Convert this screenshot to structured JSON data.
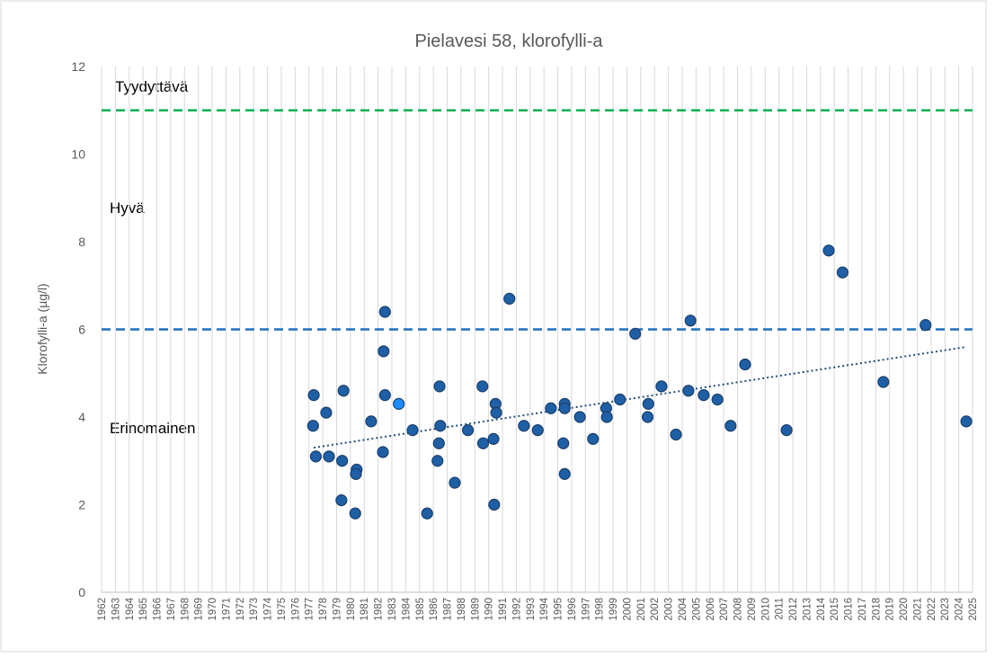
{
  "chart_data": {
    "type": "scatter",
    "title": "Pielavesi 58, klorofylli-a",
    "y_label": "Klorofylli-a (µg/l)",
    "annotations": [
      "Tyydyttävä",
      "Hyvä",
      "Erinomainen"
    ],
    "xlim": [
      1962,
      2025
    ],
    "xticks": [
      1962,
      1963,
      1964,
      1965,
      1966,
      1967,
      1968,
      1969,
      1970,
      1971,
      1972,
      1973,
      1974,
      1975,
      1976,
      1977,
      1978,
      1979,
      1980,
      1981,
      1982,
      1983,
      1984,
      1985,
      1986,
      1987,
      1988,
      1989,
      1990,
      1991,
      1992,
      1993,
      1994,
      1995,
      1996,
      1997,
      1998,
      1999,
      2000,
      2001,
      2002,
      2003,
      2004,
      2005,
      2006,
      2007,
      2008,
      2009,
      2010,
      2011,
      2012,
      2013,
      2014,
      2015,
      2016,
      2017,
      2018,
      2019,
      2020,
      2021,
      2022,
      2023,
      2024,
      2025
    ],
    "ylim": [
      0,
      12
    ],
    "yticks": [
      0,
      2,
      4,
      6,
      8,
      10,
      12
    ],
    "grid": "x",
    "thresholds": [
      {
        "value": 11,
        "color": "#00b050"
      },
      {
        "value": 6,
        "color": "#1f6fbf"
      }
    ],
    "points": {
      "color": "#1f5fa6",
      "x": [
        1977.35,
        1977.3,
        1977.5,
        1978.25,
        1978.45,
        1979.5,
        1979.4,
        1979.35,
        1980.45,
        1980.4,
        1980.35,
        1981.5,
        1982.5,
        1982.4,
        1982.5,
        1982.35,
        1984.5,
        1985.55,
        1986.45,
        1986.5,
        1986.4,
        1986.3,
        1987.55,
        1988.5,
        1989.55,
        1989.6,
        1990.5,
        1990.55,
        1990.35,
        1990.4,
        1991.5,
        1992.55,
        1993.55,
        1994.5,
        1995.5,
        1995.5,
        1995.4,
        1995.5,
        1996.6,
        1997.55,
        1998.5,
        1998.55,
        1999.5,
        2000.6,
        2001.55,
        2001.5,
        2002.5,
        2003.55,
        2004.6,
        2004.45,
        2005.55,
        2006.55,
        2007.5,
        2008.55,
        2011.55,
        2014.6,
        2015.6,
        2018.55,
        2021.6,
        2024.55
      ],
      "values": [
        4.5,
        3.8,
        3.1,
        4.1,
        3.1,
        4.6,
        3.0,
        2.1,
        2.8,
        2.7,
        1.8,
        3.9,
        6.4,
        5.5,
        4.5,
        3.2,
        3.7,
        1.8,
        4.7,
        3.8,
        3.4,
        3.0,
        2.5,
        3.7,
        4.7,
        3.4,
        4.3,
        4.1,
        3.5,
        2.0,
        6.7,
        3.8,
        3.7,
        4.2,
        4.3,
        4.2,
        3.4,
        2.7,
        4.0,
        3.5,
        4.2,
        4.0,
        4.4,
        5.9,
        4.3,
        4.0,
        4.7,
        3.6,
        6.2,
        4.6,
        4.5,
        4.4,
        3.8,
        5.2,
        3.7,
        7.8,
        7.3,
        4.8,
        6.1,
        3.9
      ]
    },
    "highlight": {
      "color": "#1a8cff",
      "x": [
        1983.5
      ],
      "values": [
        4.3
      ]
    },
    "trendline": {
      "color": "#1f4e79",
      "x": [
        1977.35,
        2024.55
      ],
      "values": [
        3.3,
        5.6
      ]
    }
  }
}
